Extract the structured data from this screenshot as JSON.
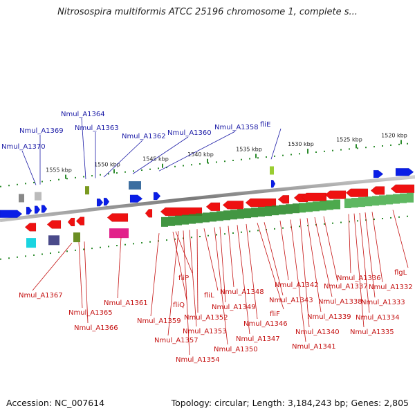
{
  "title": "Nitrosospira multiformis ATCC 25196 chromosome 1, complete s...",
  "footer": {
    "accession": "Accession: NC_007614",
    "summary": "Topology: circular; Length: 3,184,243 bp; Genes: 2,805"
  },
  "ticks": [
    "1520 kbp",
    "1525 kbp",
    "1530 kbp",
    "1535 kbp",
    "1540 kbp",
    "1545 kbp",
    "1550 kbp",
    "1555 kbp"
  ],
  "top_genes": [
    "Nmul_A1364",
    "Nmul_A1369",
    "Nmul_A1363",
    "Nmul_A1370",
    "Nmul_A1362",
    "Nmul_A1360",
    "Nmul_A1358",
    "fliE"
  ],
  "bottom_genes": [
    "Nmul_A1367",
    "Nmul_A1365",
    "Nmul_A1366",
    "Nmul_A1361",
    "fliP",
    "fliQ",
    "Nmul_A1359",
    "Nmul_A1357",
    "Nmul_A1354",
    "Nmul_A1353",
    "Nmul_A1352",
    "fliL",
    "Nmul_A1350",
    "Nmul_A1349",
    "Nmul_A1348",
    "Nmul_A1347",
    "Nmul_A1346",
    "fliF",
    "Nmul_A1343",
    "Nmul_A1342",
    "Nmul_A1341",
    "Nmul_A1340",
    "Nmul_A1339",
    "Nmul_A1338",
    "Nmul_A1337",
    "Nmul_A1336",
    "Nmul_A1335",
    "Nmul_A1334",
    "Nmul_A1333",
    "Nmul_A1332",
    "flgL"
  ],
  "colors": {
    "forward": "#0a1ee6",
    "reverse": "#ee1111",
    "backbone": "#8a8a8a",
    "tick": "#2a8a2a",
    "top_label": "#1a1aa6",
    "bottom_label": "#c41010"
  }
}
